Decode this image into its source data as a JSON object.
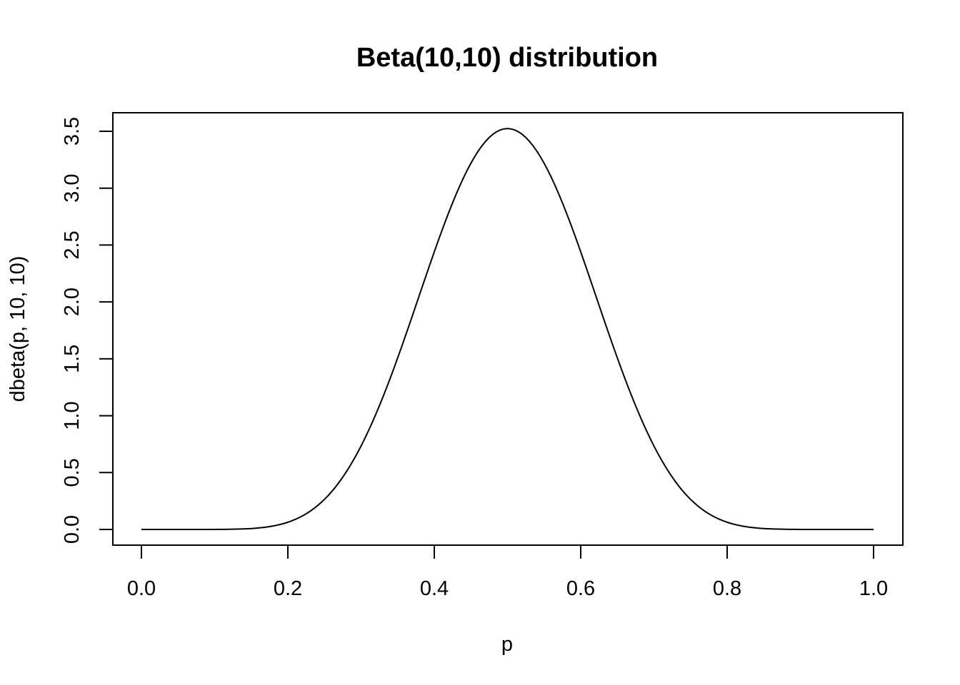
{
  "chart_data": {
    "type": "line",
    "title": "Beta(10,10) distribution",
    "xlabel": "p",
    "ylabel": "dbeta(p, 10, 10)",
    "xlim": [
      0,
      1
    ],
    "ylim": [
      0,
      3.5
    ],
    "x_ticks": [
      "0.0",
      "0.2",
      "0.4",
      "0.6",
      "0.8",
      "1.0"
    ],
    "y_ticks": [
      "0.0",
      "0.5",
      "1.0",
      "1.5",
      "2.0",
      "2.5",
      "3.0",
      "3.5"
    ],
    "grid": false,
    "series": [
      {
        "x": [
          0.0,
          0.05,
          0.1,
          0.15,
          0.2,
          0.25,
          0.3,
          0.35,
          0.4,
          0.45,
          0.5,
          0.55,
          0.6,
          0.65,
          0.7,
          0.75,
          0.8,
          0.85,
          0.9,
          0.95,
          1.0
        ],
        "y": [
          0.0,
          0.0,
          0.0,
          0.01,
          0.07,
          0.28,
          0.75,
          1.5,
          2.44,
          3.21,
          3.52,
          3.21,
          2.44,
          1.5,
          0.75,
          0.28,
          0.07,
          0.01,
          0.0,
          0.0,
          0.0
        ]
      }
    ]
  }
}
